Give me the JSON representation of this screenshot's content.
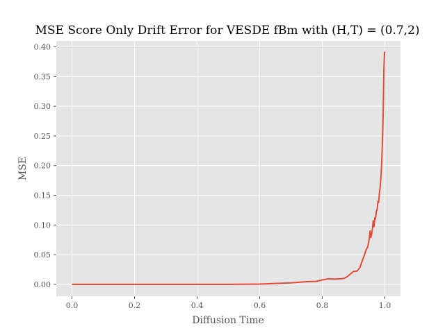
{
  "chart_data": {
    "type": "line",
    "title": "MSE Score Only Drift Error for VESDE fBm with (H,T) = (0.7,2)",
    "xlabel": "Diffusion Time",
    "ylabel": "MSE",
    "xlim": [
      -0.05,
      1.05
    ],
    "ylim": [
      -0.02,
      0.41
    ],
    "xticks": [
      0.0,
      0.2,
      0.4,
      0.6,
      0.8,
      1.0
    ],
    "xtick_labels": [
      "0.0",
      "0.2",
      "0.4",
      "0.6",
      "0.8",
      "1.0"
    ],
    "yticks": [
      0.0,
      0.05,
      0.1,
      0.15,
      0.2,
      0.25,
      0.3,
      0.35,
      0.4
    ],
    "ytick_labels": [
      "0.00",
      "0.05",
      "0.10",
      "0.15",
      "0.20",
      "0.25",
      "0.30",
      "0.35",
      "0.40"
    ],
    "grid": true,
    "background_color": "#e5e5e5",
    "grid_color": "#ffffff",
    "series": [
      {
        "color": "#e24a33",
        "x": [
          0.0,
          0.1,
          0.2,
          0.3,
          0.4,
          0.5,
          0.6,
          0.65,
          0.7,
          0.75,
          0.78,
          0.8,
          0.82,
          0.84,
          0.86,
          0.87,
          0.88,
          0.9,
          0.91,
          0.92,
          0.93,
          0.935,
          0.94,
          0.945,
          0.95,
          0.953,
          0.955,
          0.958,
          0.96,
          0.963,
          0.965,
          0.968,
          0.97,
          0.973,
          0.975,
          0.978,
          0.98,
          0.983,
          0.985,
          0.988,
          0.99,
          0.993,
          0.995,
          0.997,
          0.999,
          1.0
        ],
        "y": [
          0.0,
          0.0,
          0.0,
          0.0,
          0.0,
          0.0,
          0.0005,
          0.0015,
          0.0025,
          0.0045,
          0.005,
          0.0075,
          0.0095,
          0.009,
          0.0095,
          0.01,
          0.013,
          0.022,
          0.022,
          0.028,
          0.043,
          0.05,
          0.058,
          0.063,
          0.076,
          0.09,
          0.079,
          0.085,
          0.092,
          0.107,
          0.097,
          0.112,
          0.11,
          0.123,
          0.125,
          0.14,
          0.138,
          0.155,
          0.165,
          0.185,
          0.205,
          0.25,
          0.3,
          0.36,
          0.39,
          0.392
        ]
      }
    ]
  }
}
